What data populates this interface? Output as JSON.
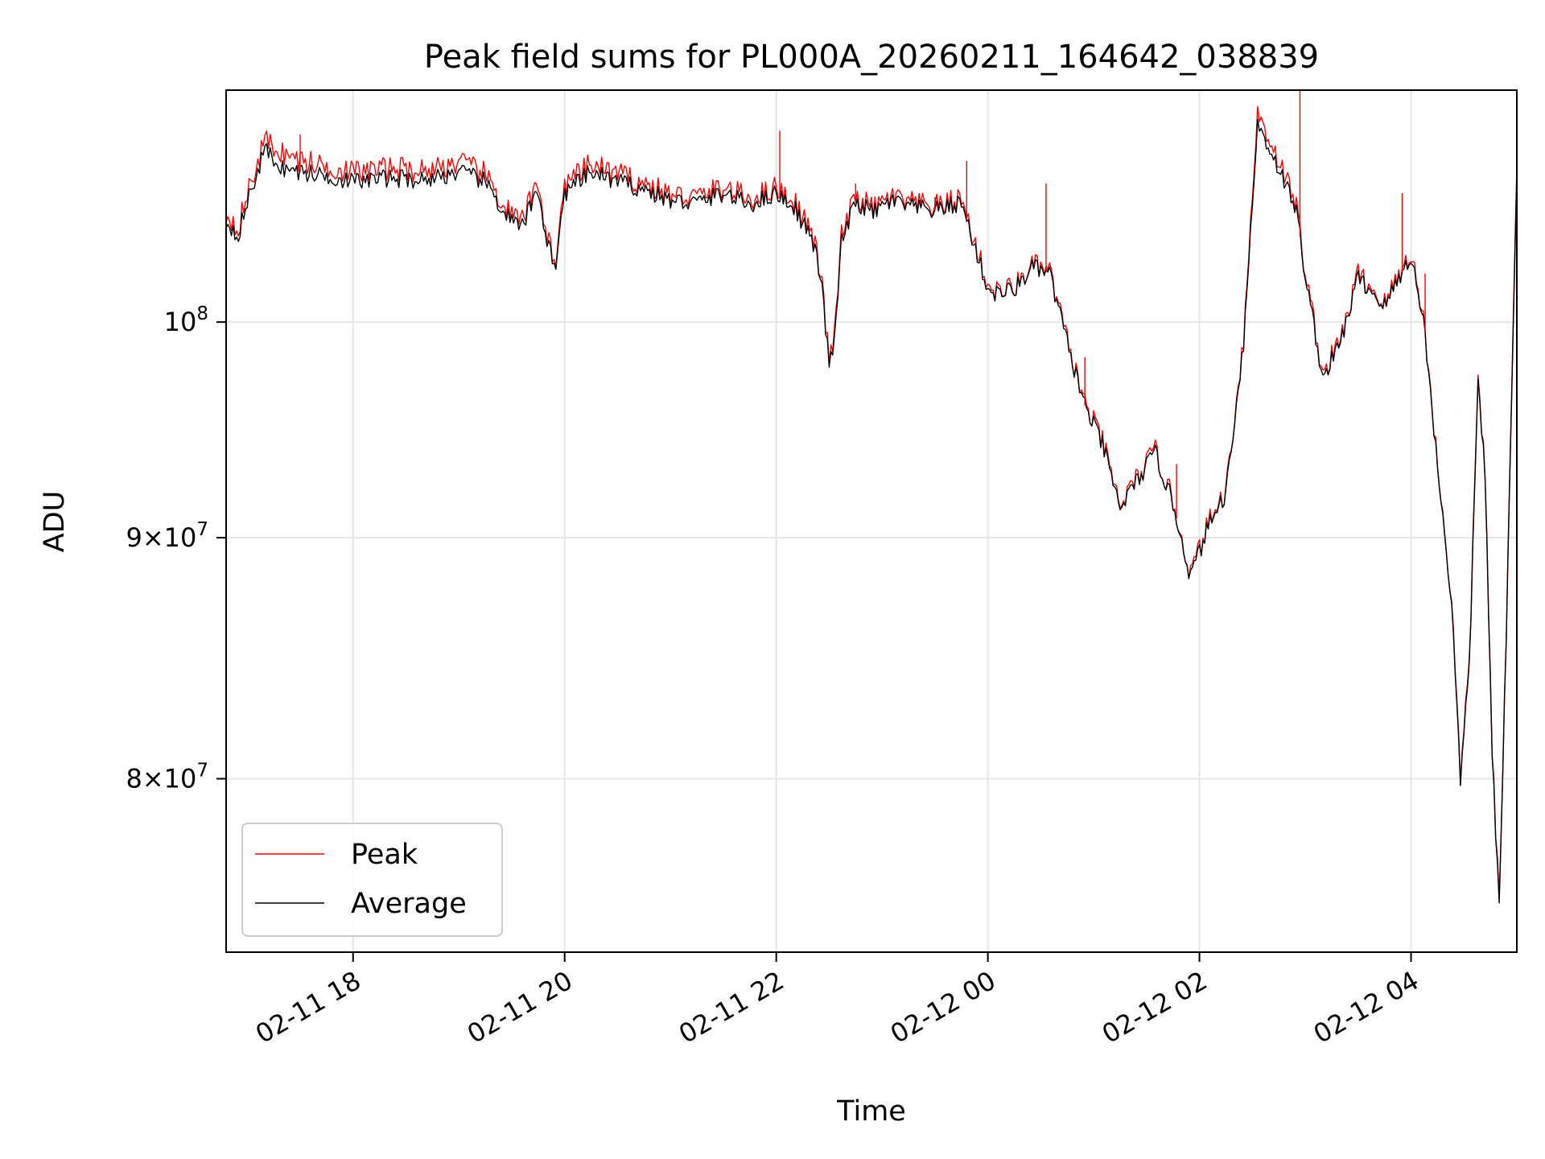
{
  "chart_data": {
    "type": "line",
    "title": "Peak field sums for PL000A_20260211_164642_038839",
    "xlabel": "Time",
    "ylabel": "ADU",
    "yscale": "log",
    "ylim": [
      73500000,
      112000000
    ],
    "xlim": [
      "2026-02-11T16:48",
      "2026-02-12T05:00"
    ],
    "grid": true,
    "legend": {
      "placement": "lower-left",
      "entries": [
        "Peak",
        "Average"
      ]
    },
    "x_ticks": [
      "02-11 18",
      "02-11 20",
      "02-11 22",
      "02-12 00",
      "02-12 02",
      "02-12 04"
    ],
    "x_tick_times": [
      "2026-02-11T18:00",
      "2026-02-11T20:00",
      "2026-02-11T22:00",
      "2026-02-12T00:00",
      "2026-02-12T02:00",
      "2026-02-12T04:00"
    ],
    "y_ticks": [
      {
        "value": 100000000,
        "label": "10^8"
      },
      {
        "value": 90000000,
        "label": "9×10^7"
      },
      {
        "value": 80000000,
        "label": "8×10^7"
      }
    ],
    "colors": {
      "Peak": "#ff0000",
      "Average": "#000000"
    },
    "series": [
      {
        "name": "Average",
        "x": [
          "2026-02-11T16:48",
          "2026-02-11T16:55",
          "2026-02-11T17:00",
          "2026-02-11T17:10",
          "2026-02-11T17:20",
          "2026-02-11T17:30",
          "2026-02-11T17:45",
          "2026-02-11T18:00",
          "2026-02-11T18:20",
          "2026-02-11T18:40",
          "2026-02-11T19:00",
          "2026-02-11T19:15",
          "2026-02-11T19:25",
          "2026-02-11T19:35",
          "2026-02-11T19:45",
          "2026-02-11T19:50",
          "2026-02-11T19:55",
          "2026-02-11T20:00",
          "2026-02-11T20:15",
          "2026-02-11T20:30",
          "2026-02-11T20:45",
          "2026-02-11T21:00",
          "2026-02-11T21:15",
          "2026-02-11T21:30",
          "2026-02-11T21:45",
          "2026-02-11T22:00",
          "2026-02-11T22:10",
          "2026-02-11T22:20",
          "2026-02-11T22:25",
          "2026-02-11T22:30",
          "2026-02-11T22:33",
          "2026-02-11T22:37",
          "2026-02-11T22:45",
          "2026-02-11T22:55",
          "2026-02-11T23:05",
          "2026-02-11T23:15",
          "2026-02-11T23:30",
          "2026-02-11T23:45",
          "2026-02-12T00:00",
          "2026-02-12T00:05",
          "2026-02-12T00:15",
          "2026-02-12T00:25",
          "2026-02-12T00:35",
          "2026-02-12T00:45",
          "2026-02-12T00:55",
          "2026-02-12T01:05",
          "2026-02-12T01:15",
          "2026-02-12T01:25",
          "2026-02-12T01:35",
          "2026-02-12T01:45",
          "2026-02-12T01:55",
          "2026-02-12T02:05",
          "2026-02-12T02:15",
          "2026-02-12T02:25",
          "2026-02-12T02:33",
          "2026-02-12T02:45",
          "2026-02-12T02:55",
          "2026-02-12T03:00",
          "2026-02-12T03:10",
          "2026-02-12T03:20",
          "2026-02-12T03:30",
          "2026-02-12T03:45",
          "2026-02-12T04:00",
          "2026-02-12T04:08",
          "2026-02-12T04:13",
          "2026-02-12T04:18",
          "2026-02-12T04:23",
          "2026-02-12T04:28",
          "2026-02-12T04:33",
          "2026-02-12T04:38",
          "2026-02-12T04:42",
          "2026-02-12T04:46",
          "2026-02-12T04:50",
          "2026-02-12T04:55",
          "2026-02-12T05:00"
        ],
        "values": [
          105000000,
          104400000,
          106000000,
          108800000,
          107800000,
          107600000,
          107400000,
          107100000,
          107300000,
          107200000,
          107600000,
          107100000,
          105600000,
          104600000,
          106700000,
          104000000,
          102800000,
          106500000,
          107600000,
          107100000,
          106700000,
          106100000,
          106000000,
          106500000,
          105900000,
          106500000,
          105800000,
          104200000,
          102400000,
          98000000,
          99000000,
          104000000,
          106000000,
          105500000,
          106100000,
          105800000,
          105600000,
          106000000,
          101600000,
          101400000,
          101600000,
          102700000,
          102400000,
          99000000,
          96000000,
          94200000,
          91300000,
          92600000,
          93800000,
          91500000,
          88300000,
          90500000,
          92000000,
          99000000,
          110200000,
          107800000,
          105600000,
          102300000,
          97300000,
          99000000,
          102200000,
          100800000,
          103300000,
          99500000,
          94800000,
          91000000,
          87200000,
          80000000,
          84400000,
          97300000,
          92800000,
          81000000,
          75000000,
          89000000,
          107500000
        ]
      },
      {
        "name": "Peak",
        "x": [
          "2026-02-11T16:48",
          "2026-02-11T16:55",
          "2026-02-11T17:00",
          "2026-02-11T17:10",
          "2026-02-11T17:20",
          "2026-02-11T17:30",
          "2026-02-11T17:45",
          "2026-02-11T18:00",
          "2026-02-11T18:20",
          "2026-02-11T18:40",
          "2026-02-11T19:00",
          "2026-02-11T19:15",
          "2026-02-11T19:25",
          "2026-02-11T19:35",
          "2026-02-11T19:45",
          "2026-02-11T19:50",
          "2026-02-11T19:55",
          "2026-02-11T20:00",
          "2026-02-11T20:15",
          "2026-02-11T20:30",
          "2026-02-11T20:45",
          "2026-02-11T21:00",
          "2026-02-11T21:15",
          "2026-02-11T21:30",
          "2026-02-11T21:45",
          "2026-02-11T22:00",
          "2026-02-11T22:10",
          "2026-02-11T22:20",
          "2026-02-11T22:25",
          "2026-02-11T22:30",
          "2026-02-11T22:33",
          "2026-02-11T22:37",
          "2026-02-11T22:45",
          "2026-02-11T22:55",
          "2026-02-11T23:05",
          "2026-02-11T23:15",
          "2026-02-11T23:30",
          "2026-02-11T23:45",
          "2026-02-12T00:00",
          "2026-02-12T00:05",
          "2026-02-12T00:15",
          "2026-02-12T00:25",
          "2026-02-12T00:35",
          "2026-02-12T00:45",
          "2026-02-12T00:55",
          "2026-02-12T01:05",
          "2026-02-12T01:15",
          "2026-02-12T01:25",
          "2026-02-12T01:35",
          "2026-02-12T01:45",
          "2026-02-12T01:55",
          "2026-02-12T02:05",
          "2026-02-12T02:15",
          "2026-02-12T02:25",
          "2026-02-12T02:33",
          "2026-02-12T02:45",
          "2026-02-12T02:55",
          "2026-02-12T03:00",
          "2026-02-12T03:10",
          "2026-02-12T03:20",
          "2026-02-12T03:30",
          "2026-02-12T03:45",
          "2026-02-12T04:00",
          "2026-02-12T04:08",
          "2026-02-12T04:13",
          "2026-02-12T04:18",
          "2026-02-12T04:23",
          "2026-02-12T04:28",
          "2026-02-12T04:33",
          "2026-02-12T04:38",
          "2026-02-12T04:42",
          "2026-02-12T04:46",
          "2026-02-12T04:50",
          "2026-02-12T04:55",
          "2026-02-12T05:00"
        ],
        "values": [
          105400000,
          104800000,
          106400000,
          109300000,
          108600000,
          108200000,
          107900000,
          107600000,
          107800000,
          107700000,
          108100000,
          107500000,
          105900000,
          104900000,
          107100000,
          104300000,
          103000000,
          106900000,
          108000000,
          107500000,
          107000000,
          106400000,
          106300000,
          106800000,
          106200000,
          106800000,
          106100000,
          104500000,
          102600000,
          98200000,
          99300000,
          104300000,
          106300000,
          105700000,
          106300000,
          106000000,
          105800000,
          106200000,
          101800000,
          101500000,
          101700000,
          102800000,
          102500000,
          99100000,
          96100000,
          94300000,
          91400000,
          92700000,
          93900000,
          91600000,
          88400000,
          90600000,
          92100000,
          99200000,
          110800000,
          108200000,
          105900000,
          102500000,
          97500000,
          99100000,
          102400000,
          100900000,
          103500000,
          99600000,
          94900000,
          91100000,
          87300000,
          80100000,
          84500000,
          97500000,
          92900000,
          81100000,
          75100000,
          89100000,
          107900000
        ]
      }
    ],
    "peak_spikes": [
      {
        "x": "2026-02-11T17:30",
        "y": 109600000
      },
      {
        "x": "2026-02-11T20:10",
        "y": 107500000
      },
      {
        "x": "2026-02-11T22:02",
        "y": 109800000
      },
      {
        "x": "2026-02-11T22:45",
        "y": 107000000
      },
      {
        "x": "2026-02-11T23:30",
        "y": 106300000
      },
      {
        "x": "2026-02-11T23:48",
        "y": 108200000
      },
      {
        "x": "2026-02-12T00:33",
        "y": 107000000
      },
      {
        "x": "2026-02-12T00:55",
        "y": 98300000
      },
      {
        "x": "2026-02-12T01:47",
        "y": 93300000
      },
      {
        "x": "2026-02-12T02:57",
        "y": 112000000
      },
      {
        "x": "2026-02-12T03:55",
        "y": 106500000
      },
      {
        "x": "2026-02-12T04:08",
        "y": 102400000
      }
    ]
  }
}
